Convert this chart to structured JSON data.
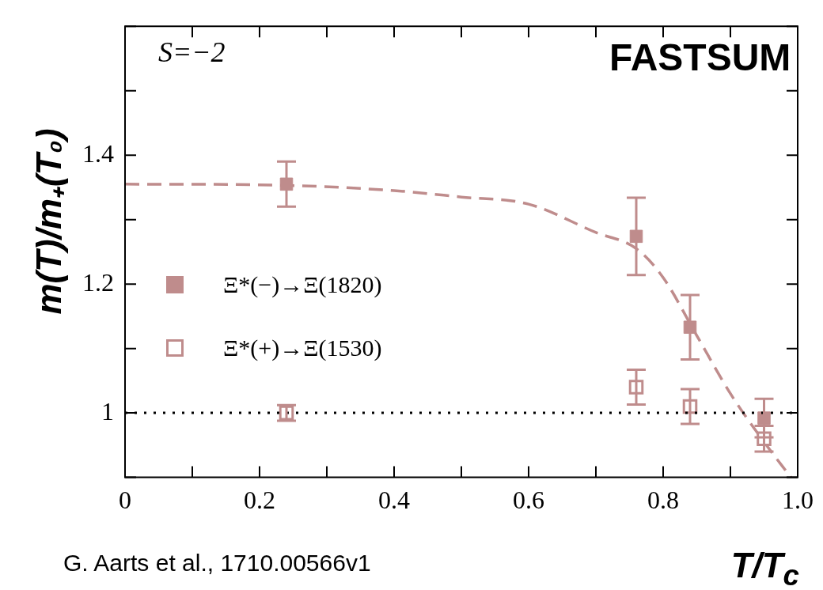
{
  "chart_data": {
    "type": "scatter",
    "xlabel": "T/T$_{c}$",
    "ylabel": "m(T)/m₊(T₀)",
    "xlim": [
      0,
      1.0
    ],
    "ylim": [
      0.9,
      1.6
    ],
    "xticks": [
      0,
      0.2,
      0.4,
      0.6,
      0.8,
      {
        "value": 1.0,
        "label": "1.0"
      }
    ],
    "yticks": [
      1,
      1.2,
      1.4
    ],
    "marker": "square",
    "legend": "left",
    "series": [
      {
        "name": "Ξ*(−)→Ξ(1820)",
        "color": "#bf8c8c",
        "x": [
          0.24,
          0.76,
          0.84,
          0.95
        ],
        "values": [
          1.355,
          1.274,
          1.133,
          0.992
        ],
        "errors": [
          0.035,
          0.06,
          0.05,
          0.03
        ]
      },
      {
        "name": "Ξ*(+)→Ξ(1530)",
        "color": "#bf8c8c",
        "x": [
          0.24,
          0.76,
          0.84,
          0.95
        ],
        "values": [
          1.0,
          1.04,
          1.01,
          0.96
        ],
        "errors": [
          0.012,
          0.027,
          0.027,
          0.02
        ]
      },
      {
        "type": "line",
        "color": "#bf8c8c",
        "line_style": "dashed",
        "marker": "none",
        "x": [
          0,
          0.2,
          0.4,
          0.5,
          0.6,
          0.7,
          0.76,
          0.8,
          0.85,
          0.9,
          0.95,
          0.99
        ],
        "values": [
          1.355,
          1.354,
          1.345,
          1.335,
          1.324,
          1.28,
          1.255,
          1.21,
          1.12,
          1.03,
          0.955,
          0.9
        ]
      }
    ],
    "ref_lines": [
      {
        "axis": "y",
        "value": 1,
        "color": "#000000",
        "line_style": "dotted"
      }
    ],
    "annotations": [
      "S=−2",
      "FASTSUM",
      "G. Aarts et al., 1710.00566v1"
    ]
  }
}
